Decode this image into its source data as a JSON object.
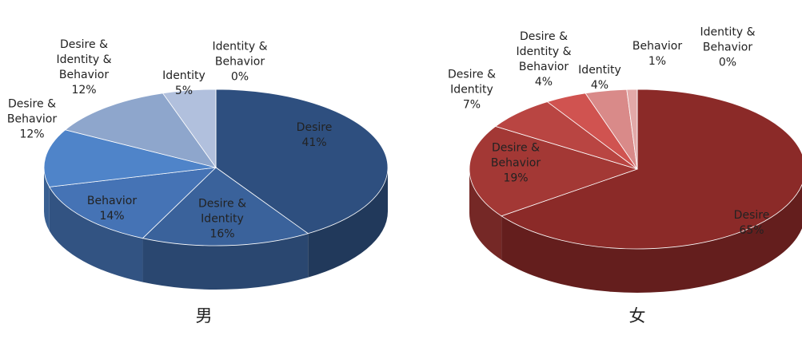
{
  "chart_data": [
    {
      "type": "pie",
      "title": "男",
      "categories": [
        "Desire",
        "Desire & Identity",
        "Behavior",
        "Desire & Behavior",
        "Desire & Identity & Behavior",
        "Identity",
        "Identity & Behavior"
      ],
      "values": [
        41,
        16,
        14,
        12,
        12,
        5,
        0
      ],
      "value_labels": [
        "41%",
        "16%",
        "14%",
        "12%",
        "12%",
        "5%",
        "0%"
      ],
      "colors": [
        "#2e4f7f",
        "#3a629b",
        "#4573b5",
        "#4f84c9",
        "#8ea6cc",
        "#b1c0dd",
        "#c8d3e8"
      ]
    },
    {
      "type": "pie",
      "title": "女",
      "categories": [
        "Desire",
        "Desire & Behavior",
        "Desire & Identity",
        "Desire & Identity & Behavior",
        "Identity",
        "Behavior",
        "Identity & Behavior"
      ],
      "values": [
        65,
        19,
        7,
        4,
        4,
        1,
        0
      ],
      "value_labels": [
        "65%",
        "19%",
        "7%",
        "4%",
        "4%",
        "1%",
        "0%"
      ],
      "colors": [
        "#8b2a28",
        "#a33835",
        "#b94542",
        "#d05350",
        "#d98a89",
        "#e3a9a8",
        "#ecc6c5"
      ]
    }
  ]
}
